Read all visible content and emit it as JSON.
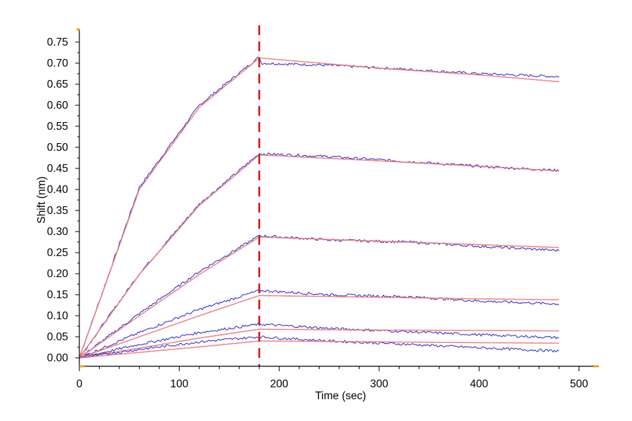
{
  "chart_data": {
    "type": "line",
    "title": "",
    "xlabel": "Time (sec)",
    "ylabel": "Shift (nm)",
    "xlim": [
      0,
      520
    ],
    "ylim": [
      -0.02,
      0.78
    ],
    "x_ticks": [
      "0",
      "100",
      "200",
      "300",
      "400",
      "500"
    ],
    "y_ticks": [
      "0.00",
      "0.05",
      "0.10",
      "0.15",
      "0.20",
      "0.25",
      "0.30",
      "0.35",
      "0.40",
      "0.45",
      "0.50",
      "0.55",
      "0.60",
      "0.65",
      "0.70",
      "0.75"
    ],
    "grid": false,
    "legend": "none",
    "divider": {
      "x": 180,
      "color": "#cc1111"
    },
    "series_color_measured": "#2222cc",
    "series_color_fit": "#f07a7a",
    "series": [
      {
        "measured": [
          [
            0,
            0
          ],
          [
            60,
            0.405
          ],
          [
            120,
            0.6
          ],
          [
            180,
            0.715
          ],
          [
            182,
            0.7
          ],
          [
            250,
            0.695
          ],
          [
            330,
            0.685
          ],
          [
            400,
            0.675
          ],
          [
            480,
            0.668
          ]
        ],
        "fit": [
          [
            0,
            0
          ],
          [
            60,
            0.4
          ],
          [
            120,
            0.595
          ],
          [
            180,
            0.712
          ],
          [
            182,
            0.712
          ],
          [
            300,
            0.688
          ],
          [
            400,
            0.672
          ],
          [
            480,
            0.656
          ]
        ]
      },
      {
        "measured": [
          [
            0,
            0
          ],
          [
            60,
            0.2
          ],
          [
            120,
            0.365
          ],
          [
            180,
            0.485
          ],
          [
            250,
            0.478
          ],
          [
            330,
            0.466
          ],
          [
            400,
            0.455
          ],
          [
            480,
            0.445
          ]
        ],
        "fit": [
          [
            0,
            0
          ],
          [
            60,
            0.198
          ],
          [
            120,
            0.362
          ],
          [
            180,
            0.482
          ],
          [
            300,
            0.468
          ],
          [
            400,
            0.455
          ],
          [
            480,
            0.444
          ]
        ]
      },
      {
        "measured": [
          [
            0,
            0
          ],
          [
            60,
            0.105
          ],
          [
            120,
            0.205
          ],
          [
            180,
            0.29
          ],
          [
            250,
            0.28
          ],
          [
            330,
            0.275
          ],
          [
            400,
            0.265
          ],
          [
            480,
            0.255
          ]
        ],
        "fit": [
          [
            0,
            0
          ],
          [
            60,
            0.1
          ],
          [
            120,
            0.198
          ],
          [
            180,
            0.287
          ],
          [
            300,
            0.277
          ],
          [
            400,
            0.269
          ],
          [
            480,
            0.262
          ]
        ]
      },
      {
        "measured": [
          [
            0,
            0
          ],
          [
            60,
            0.06
          ],
          [
            120,
            0.115
          ],
          [
            180,
            0.16
          ],
          [
            250,
            0.15
          ],
          [
            330,
            0.145
          ],
          [
            400,
            0.135
          ],
          [
            480,
            0.128
          ]
        ],
        "fit": [
          [
            0,
            0
          ],
          [
            60,
            0.05
          ],
          [
            120,
            0.1
          ],
          [
            180,
            0.148
          ],
          [
            300,
            0.144
          ],
          [
            400,
            0.14
          ],
          [
            480,
            0.138
          ]
        ]
      },
      {
        "measured": [
          [
            0,
            0
          ],
          [
            60,
            0.032
          ],
          [
            120,
            0.06
          ],
          [
            180,
            0.08
          ],
          [
            250,
            0.07
          ],
          [
            330,
            0.062
          ],
          [
            400,
            0.055
          ],
          [
            480,
            0.048
          ]
        ],
        "fit": [
          [
            0,
            0
          ],
          [
            60,
            0.023
          ],
          [
            120,
            0.047
          ],
          [
            180,
            0.068
          ],
          [
            300,
            0.066
          ],
          [
            400,
            0.065
          ],
          [
            480,
            0.064
          ]
        ]
      },
      {
        "measured": [
          [
            0,
            0
          ],
          [
            60,
            0.02
          ],
          [
            120,
            0.038
          ],
          [
            180,
            0.05
          ],
          [
            250,
            0.04
          ],
          [
            330,
            0.032
          ],
          [
            400,
            0.024
          ],
          [
            480,
            0.016
          ]
        ],
        "fit": [
          [
            0,
            0
          ],
          [
            60,
            0.013
          ],
          [
            120,
            0.026
          ],
          [
            180,
            0.04
          ],
          [
            300,
            0.038
          ],
          [
            400,
            0.036
          ],
          [
            480,
            0.035
          ]
        ]
      }
    ]
  }
}
